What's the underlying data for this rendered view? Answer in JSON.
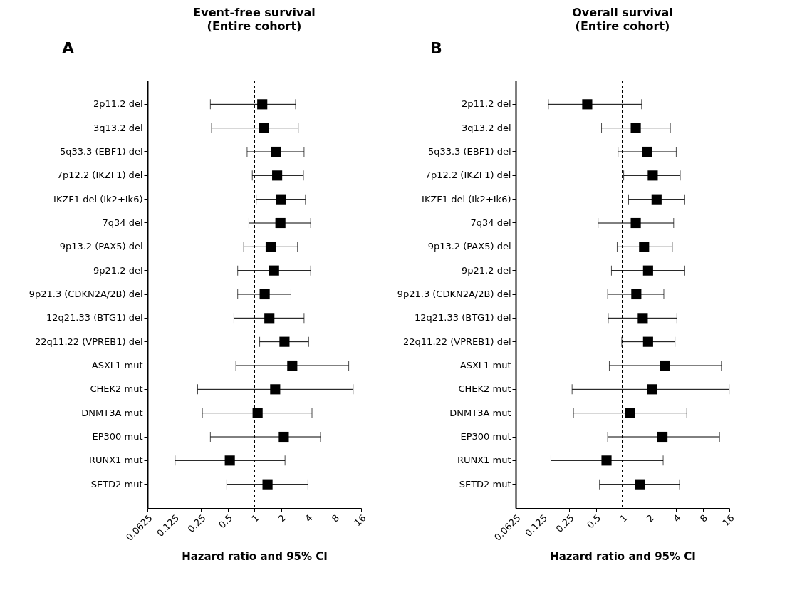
{
  "chart_data": [
    {
      "type": "scatter",
      "title": "Event-free survival",
      "subtitle": "(Entire cohort)",
      "xlabel": "Hazard ratio and 95% CI",
      "annotations": [
        "A"
      ],
      "orientation": "horizontal",
      "log": "x",
      "marker": "square",
      "grid": false,
      "categories": [
        "2p11.2 del",
        "3q13.2 del",
        "5q33.3 (EBF1) del",
        "7p12.2 (IKZF1) del",
        "IKZF1 del (Ik2+Ik6)",
        "7q34 del",
        "9p13.2 (PAX5) del",
        "9p21.2 del",
        "9p21.3 (CDKN2A/2B) del",
        "12q21.33 (BTG1) del",
        "22q11.22 (VPREB1) del",
        "ASXL1 mut",
        "CHEK2 mut",
        "DNMT3A mut",
        "EP300 mut",
        "RUNX1 mut",
        "SETD2 mut"
      ],
      "series": [
        {
          "color": "#000000",
          "values": [
            1.23,
            1.29,
            1.75,
            1.81,
            2.01,
            1.97,
            1.53,
            1.67,
            1.31,
            1.48,
            2.19,
            2.68,
            1.72,
            1.09,
            2.15,
            0.53,
            1.41
          ],
          "errors": [
            [
              0.32,
              2.92
            ],
            [
              0.33,
              3.13
            ],
            [
              0.83,
              3.64
            ],
            [
              0.95,
              3.58
            ],
            [
              1.05,
              3.77
            ],
            [
              0.87,
              4.32
            ],
            [
              0.76,
              3.07
            ],
            [
              0.65,
              4.32
            ],
            [
              0.65,
              2.59
            ],
            [
              0.59,
              3.64
            ],
            [
              1.15,
              4.1
            ],
            [
              0.62,
              11.6
            ],
            [
              0.23,
              13.0
            ],
            [
              0.26,
              4.47
            ],
            [
              0.32,
              5.57
            ],
            [
              0.128,
              2.22
            ],
            [
              0.49,
              4.03
            ]
          ]
        }
      ],
      "xlim": [
        0.0625,
        16
      ],
      "xticks": [
        0.0625,
        0.125,
        0.25,
        0.5,
        1,
        2,
        4,
        8,
        16
      ],
      "ref_lines": [
        {
          "axis": "x",
          "value": 1,
          "color": "#000000",
          "line_style": "dashed"
        }
      ]
    },
    {
      "type": "scatter",
      "title": "Overall survival",
      "subtitle": "(Entire cohort)",
      "xlabel": "Hazard ratio and 95% CI",
      "annotations": [
        "B"
      ],
      "orientation": "horizontal",
      "log": "x",
      "marker": "square",
      "grid": false,
      "categories": [
        "2p11.2 del",
        "3q13.2 del",
        "5q33.3 (EBF1) del",
        "7p12.2 (IKZF1) del",
        "IKZF1 del (Ik2+Ik6)",
        "7q34 del",
        "9p13.2 (PAX5) del",
        "9p21.2 del",
        "9p21.3 (CDKN2A/2B) del",
        "12q21.33 (BTG1) del",
        "22q11.22 (VPREB1) del",
        "ASXL1 mut",
        "CHEK2 mut",
        "DNMT3A mut",
        "EP300 mut",
        "RUNX1 mut",
        "SETD2 mut"
      ],
      "series": [
        {
          "color": "#000000",
          "values": [
            0.4,
            1.41,
            1.88,
            2.19,
            2.42,
            1.41,
            1.75,
            1.94,
            1.43,
            1.69,
            1.94,
            3.02,
            2.15,
            1.21,
            2.82,
            0.66,
            1.56
          ],
          "errors": [
            [
              0.146,
              1.64
            ],
            [
              0.58,
              3.46
            ],
            [
              0.89,
              4.03
            ],
            [
              1.03,
              4.47
            ],
            [
              1.17,
              5.03
            ],
            [
              0.53,
              3.77
            ],
            [
              0.87,
              3.64
            ],
            [
              0.75,
              5.03
            ],
            [
              0.68,
              2.92
            ],
            [
              0.69,
              4.1
            ],
            [
              0.98,
              3.9
            ],
            [
              0.71,
              13.0
            ],
            [
              0.27,
              15.9
            ],
            [
              0.28,
              5.3
            ],
            [
              0.68,
              12.4
            ],
            [
              0.156,
              2.87
            ],
            [
              0.55,
              4.39
            ]
          ]
        }
      ],
      "xlim": [
        0.0625,
        16
      ],
      "xticks": [
        0.0625,
        0.125,
        0.25,
        0.5,
        1,
        2,
        4,
        8,
        16
      ],
      "ref_lines": [
        {
          "axis": "x",
          "value": 1,
          "color": "#000000",
          "line_style": "dashed"
        }
      ]
    }
  ]
}
